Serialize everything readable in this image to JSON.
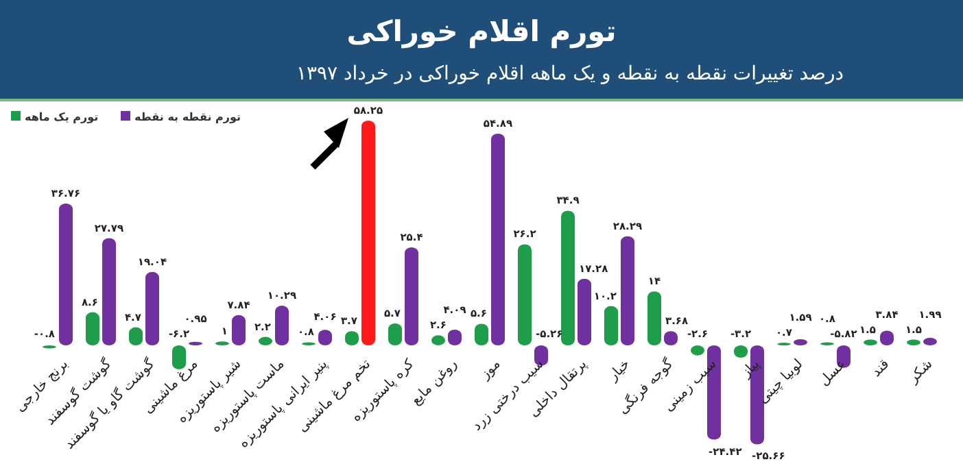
{
  "chart_data": {
    "type": "bar",
    "title": "تورم اقلام خوراکی",
    "subtitle": "درصد تغییرات نقطه به نقطه و یک ماهه اقلام خوراکی در خرداد ۱۳۹۷",
    "categories": [
      "برنج خارجی",
      "گوشت گوسفند",
      "گوشت گاو یا گوسفند",
      "مرغ ماشینی",
      "شیر پاستوریزه",
      "ماست پاستوریزه",
      "پنیر ایرانی پاستوریزه",
      "تخم مرغ ماشینی",
      "کره پاستوریزه",
      "روغن مایع",
      "موز",
      "سیب درختی زرد",
      "پرتقال داخلی",
      "خیار",
      "گوجه فرنگی",
      "سیب زمینی",
      "پیاز",
      "لوبیا چیتی",
      "عسل",
      "قند",
      "شکر"
    ],
    "series": [
      {
        "name": "تورم یک ماهه",
        "color": "#1e9e4a",
        "values": [
          -0.8,
          8.6,
          4.7,
          -6.2,
          1,
          2.2,
          0.8,
          3.7,
          5.7,
          2.6,
          5.6,
          26.2,
          34.9,
          10.2,
          14,
          -2.6,
          -3.2,
          0.7,
          0.8,
          1.5,
          1.5
        ],
        "value_labels": [
          "-۰.۸",
          "۸.۶",
          "۴.۷",
          "-۶.۲",
          "۱",
          "۲.۲",
          "۰.۸",
          "۳.۷",
          "۵.۷",
          "۲.۶",
          "۵.۶",
          "۲۶.۲",
          "۳۴.۹",
          "۱۰.۲",
          "۱۴",
          "-۲.۶",
          "-۳.۲",
          "۰.۷",
          "۰.۸",
          "۱.۵",
          "۱.۵"
        ]
      },
      {
        "name": "تورم نقطه به نقطه",
        "color": "#7030a0",
        "colors": [
          "#7030a0",
          "#7030a0",
          "#7030a0",
          "#7030a0",
          "#7030a0",
          "#7030a0",
          "#7030a0",
          "#ff1a1a",
          "#7030a0",
          "#7030a0",
          "#7030a0",
          "#7030a0",
          "#7030a0",
          "#7030a0",
          "#7030a0",
          "#7030a0",
          "#7030a0",
          "#7030a0",
          "#7030a0",
          "#7030a0",
          "#7030a0"
        ],
        "values": [
          36.76,
          27.79,
          19.04,
          0.95,
          7.84,
          10.29,
          4.06,
          58.25,
          25.4,
          4.09,
          54.89,
          -5.26,
          17.28,
          28.29,
          3.68,
          -24.42,
          -25.66,
          1.59,
          -5.82,
          3.84,
          1.99
        ],
        "value_labels": [
          "۳۶.۷۶",
          "۲۷.۷۹",
          "۱۹.۰۴",
          "۰.۹۵",
          "۷.۸۴",
          "۱۰.۲۹",
          "۴.۰۶",
          "۵۸.۲۵",
          "۲۵.۴",
          "۴.۰۹",
          "۵۴.۸۹",
          "-۵.۲۶",
          "۱۷.۲۸",
          "۲۸.۲۹",
          "۳.۶۸",
          "-۲۴.۴۲",
          "-۲۵.۶۶",
          "۱.۵۹",
          "-۵.۸۲",
          "۳.۸۴",
          "۱.۹۹"
        ]
      }
    ],
    "legend": "top left"
  }
}
